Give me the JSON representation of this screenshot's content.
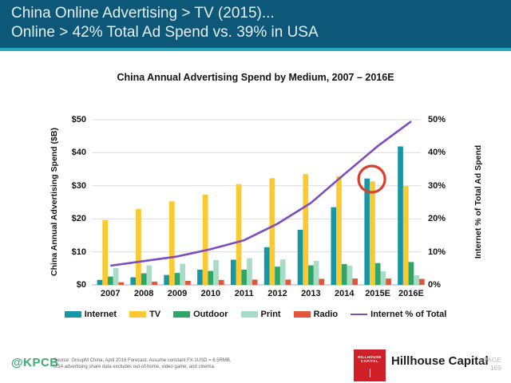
{
  "header": {
    "line1": "China Online Advertising > TV (2015)...",
    "line2": "Online > 42% Total Ad Spend vs. 39% in USA"
  },
  "chart_data": {
    "type": "bar",
    "title": "China Annual Advertising Spend by Medium, 2007 – 2016E",
    "categories": [
      "2007",
      "2008",
      "2009",
      "2010",
      "2011",
      "2012",
      "2013",
      "2014",
      "2015E",
      "2016E"
    ],
    "series": [
      {
        "name": "Internet",
        "color": "#1796A6",
        "values": [
          1.5,
          2.3,
          3.0,
          4.6,
          7.6,
          11.4,
          16.7,
          23.5,
          32.2,
          41.9
        ]
      },
      {
        "name": "TV",
        "color": "#FBC930",
        "values": [
          19.6,
          23.0,
          25.3,
          27.3,
          30.5,
          32.3,
          33.5,
          32.9,
          31.3,
          29.9
        ]
      },
      {
        "name": "Outdoor",
        "color": "#2FA567",
        "values": [
          2.5,
          3.5,
          3.6,
          4.2,
          4.6,
          5.5,
          5.9,
          6.3,
          6.6,
          6.9
        ]
      },
      {
        "name": "Print",
        "color": "#A9DCC6",
        "values": [
          5.1,
          5.9,
          6.4,
          7.5,
          8.1,
          7.7,
          7.3,
          5.8,
          4.1,
          2.9
        ]
      },
      {
        "name": "Radio",
        "color": "#E1553C",
        "values": [
          0.8,
          1.0,
          1.2,
          1.5,
          1.6,
          1.6,
          1.8,
          1.9,
          1.9,
          1.8
        ]
      }
    ],
    "line_series": {
      "name": "Internet % of Total",
      "color": "#7C4DBE",
      "values": [
        5.8,
        7.2,
        8.6,
        10.8,
        13.5,
        18.5,
        24.8,
        33.5,
        42.0,
        49.5
      ]
    },
    "ylabel_left": "China Annual Advertising Spend ($B)",
    "ylabel_right": "Internet % of Total Ad Spend",
    "yticks_left": [
      "$0",
      "$10",
      "$20",
      "$30",
      "$40",
      "$50"
    ],
    "yticks_right": [
      "0%",
      "10%",
      "20%",
      "30%",
      "40%",
      "50%"
    ],
    "ylim": [
      0,
      50
    ],
    "grid": "horizontal",
    "legend_position": "bottom",
    "annotation": {
      "type": "circle",
      "category_index": 8,
      "center_value": 32,
      "color": "#D8402C"
    }
  },
  "footer": {
    "kpcb": "@KPCB",
    "source_line1": "Source: GroupM China, April 2016 Forecast. Assume constant FX 1USD = 6.5RMB.",
    "source_line2": "USA advertising share data excludes out-of-home, video game, and cinema.",
    "brand": "Hillhouse Capital",
    "logo_line1": "HILLHOUSE",
    "logo_line2": "CAPITAL",
    "page_label": "| PAGE",
    "page_number": "169"
  },
  "colors": {
    "header_bg": "#0D5878",
    "header_strip": "#2BA9BF",
    "gridline": "#DCDCDC",
    "axis_line": "#ABABAB",
    "kpcb_green": "#3BAC72",
    "logo_red": "#D01F26"
  }
}
